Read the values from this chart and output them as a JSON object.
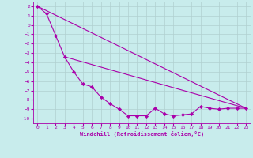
{
  "xlabel": "Windchill (Refroidissement éolien,°C)",
  "bg_color": "#c8ecec",
  "grid_color": "#b0d0d0",
  "line_color": "#aa00aa",
  "xlim": [
    -0.5,
    23.5
  ],
  "ylim": [
    -10.5,
    2.5
  ],
  "xticks": [
    0,
    1,
    2,
    3,
    4,
    5,
    6,
    7,
    8,
    9,
    10,
    11,
    12,
    13,
    14,
    15,
    16,
    17,
    18,
    19,
    20,
    21,
    22,
    23
  ],
  "yticks": [
    2,
    1,
    0,
    -1,
    -2,
    -3,
    -4,
    -5,
    -6,
    -7,
    -8,
    -9,
    -10
  ],
  "line1_x": [
    0,
    1,
    2,
    3,
    4,
    5,
    6,
    7,
    8,
    9,
    10,
    11,
    12,
    13,
    14,
    15,
    16,
    17,
    18,
    19,
    20,
    21,
    22,
    23
  ],
  "line1_y": [
    2.0,
    1.2,
    -1.1,
    -3.4,
    -5.0,
    -6.3,
    -6.6,
    -7.7,
    -8.4,
    -9.0,
    -9.7,
    -9.7,
    -9.7,
    -8.9,
    -9.5,
    -9.7,
    -9.6,
    -9.5,
    -8.7,
    -8.9,
    -9.0,
    -8.9,
    -8.9,
    -8.9
  ],
  "line2_x": [
    0,
    23
  ],
  "line2_y": [
    2.0,
    -8.9
  ],
  "line3_x": [
    3,
    23
  ],
  "line3_y": [
    -3.4,
    -8.9
  ]
}
